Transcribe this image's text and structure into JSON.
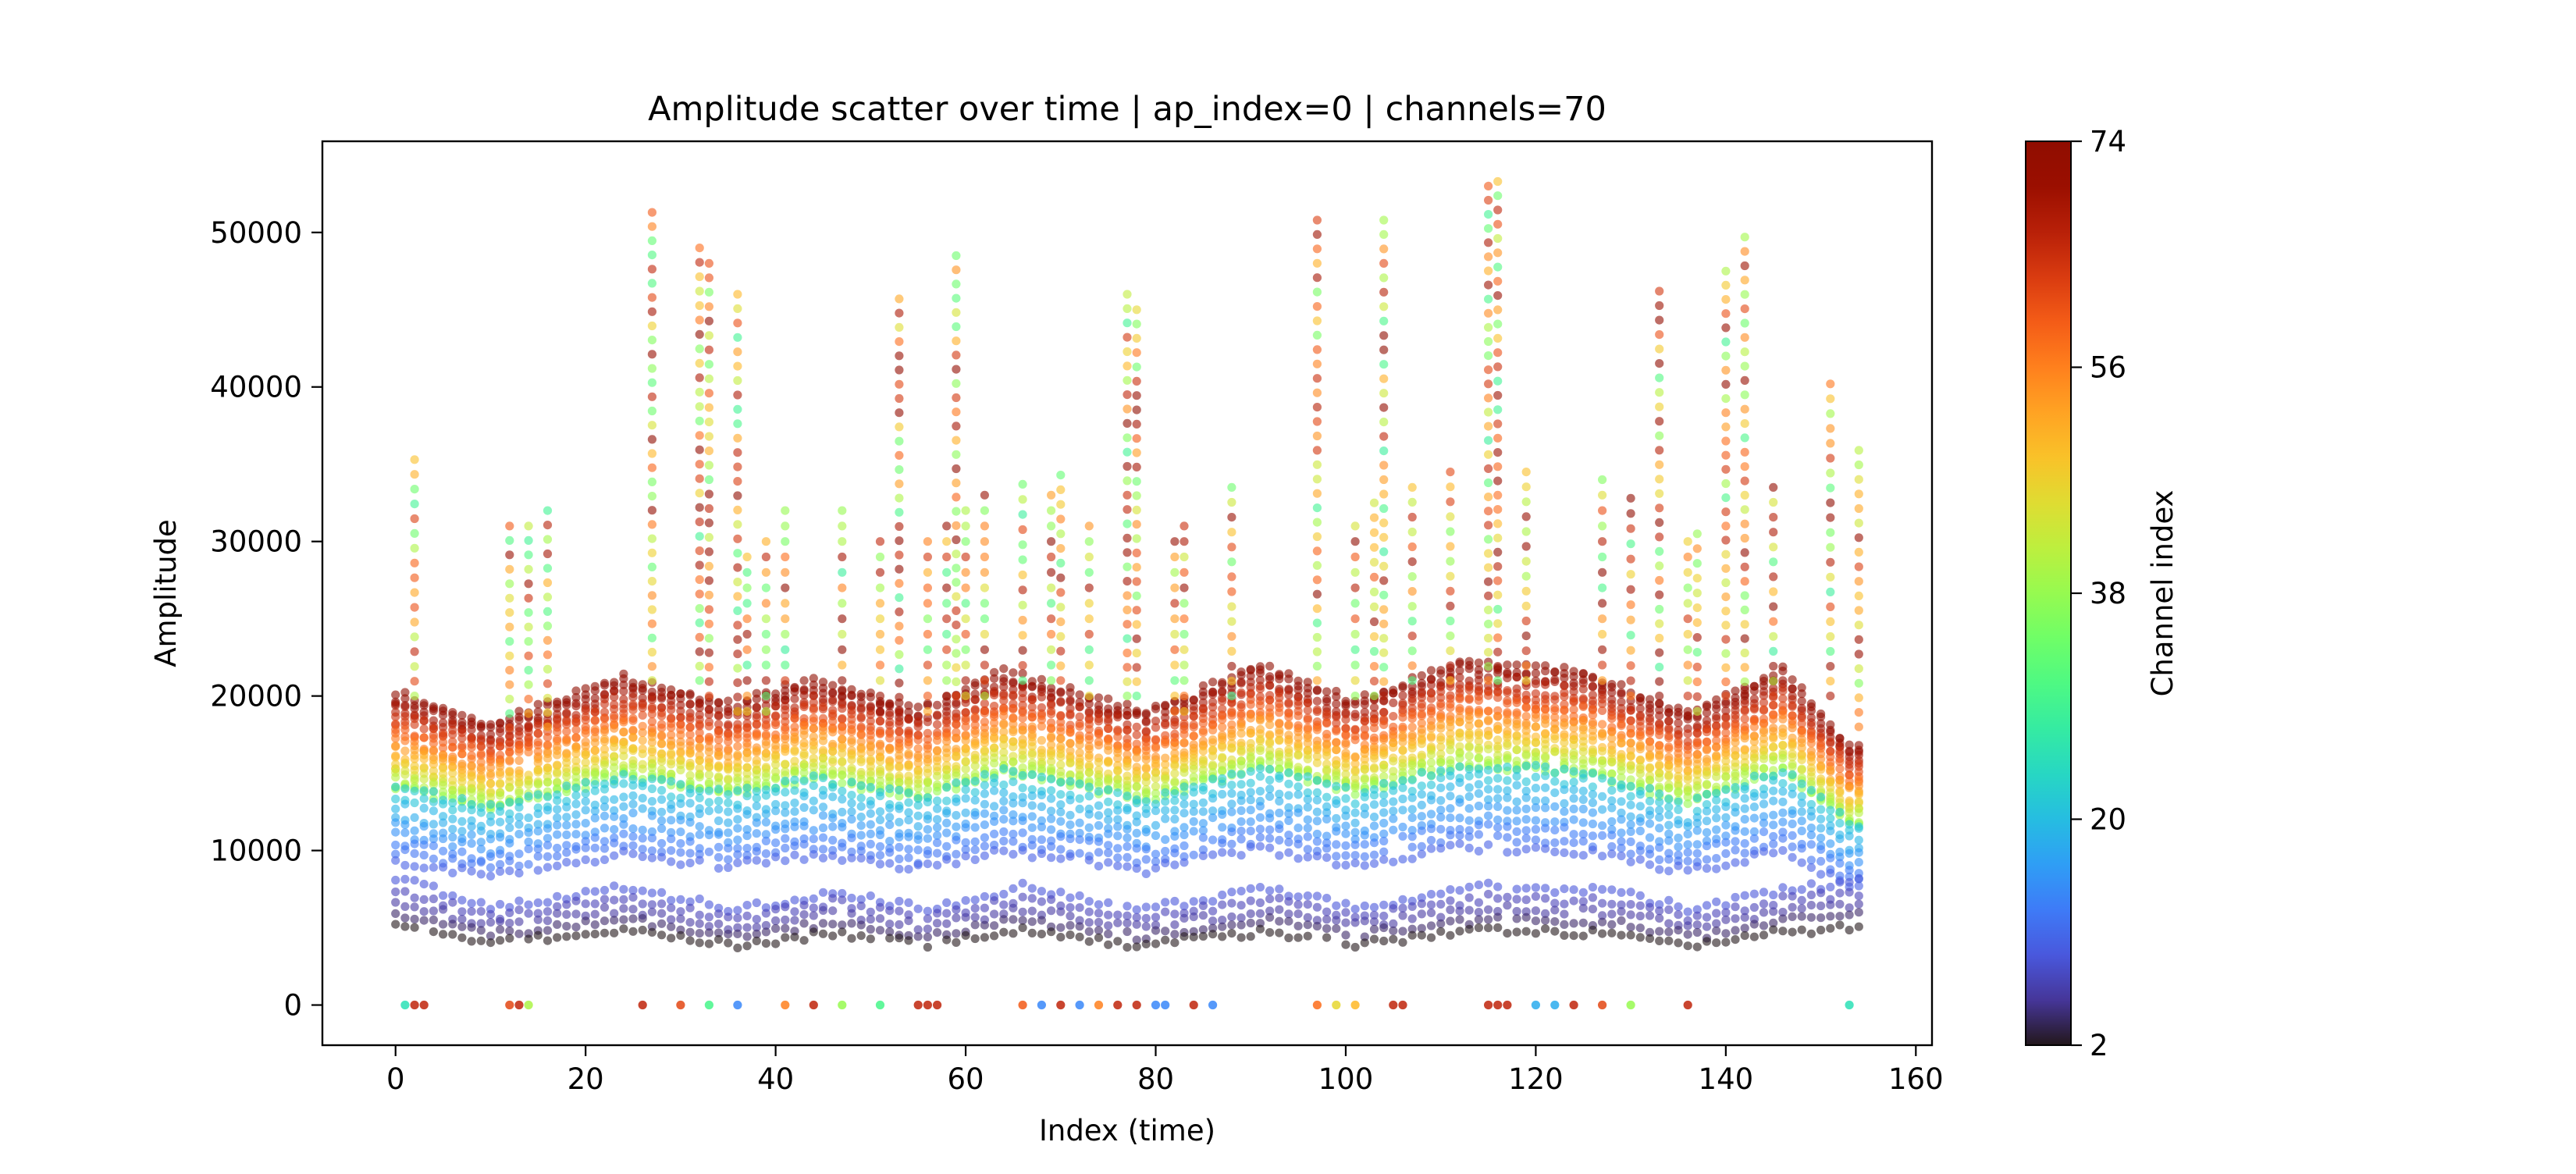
{
  "chart_data": {
    "type": "scatter",
    "title": "Amplitude scatter over time | ap_index=0 | channels=70",
    "xlabel": "Index (time)",
    "ylabel": "Amplitude",
    "xlim": [
      -7.7,
      161.7
    ],
    "ylim": [
      -2600,
      55900
    ],
    "xticks": [
      0,
      20,
      40,
      60,
      80,
      100,
      120,
      140,
      160
    ],
    "yticks": [
      0,
      10000,
      20000,
      30000,
      40000,
      50000
    ],
    "grid": false,
    "colormap": "turbo",
    "colorbar": {
      "label": "Channel index",
      "min": 2,
      "max": 74,
      "ticks": [
        2,
        20,
        38,
        56,
        74
      ]
    },
    "x_count": 155,
    "channel_count": 70,
    "zero_points": [
      {
        "x": 1,
        "channel": 25
      },
      {
        "x": 2,
        "channel": 66
      },
      {
        "x": 3,
        "channel": 66
      },
      {
        "x": 12,
        "channel": 62
      },
      {
        "x": 13,
        "channel": 66
      },
      {
        "x": 14,
        "channel": 40
      },
      {
        "x": 26,
        "channel": 66
      },
      {
        "x": 30,
        "channel": 62
      },
      {
        "x": 33,
        "channel": 30
      },
      {
        "x": 36,
        "channel": 14
      },
      {
        "x": 41,
        "channel": 56
      },
      {
        "x": 44,
        "channel": 66
      },
      {
        "x": 47,
        "channel": 38
      },
      {
        "x": 51,
        "channel": 30
      },
      {
        "x": 55,
        "channel": 66
      },
      {
        "x": 56,
        "channel": 66
      },
      {
        "x": 57,
        "channel": 66
      },
      {
        "x": 66,
        "channel": 60
      },
      {
        "x": 68,
        "channel": 14
      },
      {
        "x": 70,
        "channel": 66
      },
      {
        "x": 72,
        "channel": 14
      },
      {
        "x": 74,
        "channel": 56
      },
      {
        "x": 76,
        "channel": 66
      },
      {
        "x": 78,
        "channel": 66
      },
      {
        "x": 80,
        "channel": 14
      },
      {
        "x": 81,
        "channel": 14
      },
      {
        "x": 84,
        "channel": 66
      },
      {
        "x": 86,
        "channel": 14
      },
      {
        "x": 97,
        "channel": 58
      },
      {
        "x": 99,
        "channel": 46
      },
      {
        "x": 101,
        "channel": 50
      },
      {
        "x": 105,
        "channel": 66
      },
      {
        "x": 106,
        "channel": 66
      },
      {
        "x": 115,
        "channel": 66
      },
      {
        "x": 116,
        "channel": 66
      },
      {
        "x": 117,
        "channel": 66
      },
      {
        "x": 120,
        "channel": 18
      },
      {
        "x": 122,
        "channel": 18
      },
      {
        "x": 124,
        "channel": 66
      },
      {
        "x": 127,
        "channel": 62
      },
      {
        "x": 130,
        "channel": 38
      },
      {
        "x": 136,
        "channel": 66
      },
      {
        "x": 153,
        "channel": 25
      }
    ],
    "spikes": [
      {
        "x": 2,
        "max": 35300,
        "min": 20000
      },
      {
        "x": 12,
        "max": 31000,
        "min": 17000
      },
      {
        "x": 14,
        "max": 31000,
        "min": 17000
      },
      {
        "x": 16,
        "max": 32000,
        "min": 18000
      },
      {
        "x": 27,
        "max": 51300,
        "min": 21000
      },
      {
        "x": 32,
        "max": 49000,
        "min": 21000
      },
      {
        "x": 33,
        "max": 48000,
        "min": 20000
      },
      {
        "x": 36,
        "max": 46000,
        "min": 19000
      },
      {
        "x": 37,
        "max": 29000,
        "min": 19000
      },
      {
        "x": 39,
        "max": 30000,
        "min": 19000
      },
      {
        "x": 41,
        "max": 32000,
        "min": 20000
      },
      {
        "x": 47,
        "max": 32000,
        "min": 20000
      },
      {
        "x": 51,
        "max": 30000,
        "min": 19000
      },
      {
        "x": 53,
        "max": 45700,
        "min": 19000
      },
      {
        "x": 56,
        "max": 30000,
        "min": 19000
      },
      {
        "x": 58,
        "max": 31000,
        "min": 20000
      },
      {
        "x": 59,
        "max": 48500,
        "min": 20000
      },
      {
        "x": 60,
        "max": 32000,
        "min": 20000
      },
      {
        "x": 62,
        "max": 33000,
        "min": 20000
      },
      {
        "x": 66,
        "max": 33700,
        "min": 21000
      },
      {
        "x": 69,
        "max": 33000,
        "min": 21000
      },
      {
        "x": 70,
        "max": 34300,
        "min": 21000
      },
      {
        "x": 73,
        "max": 31000,
        "min": 20000
      },
      {
        "x": 77,
        "max": 46000,
        "min": 20000
      },
      {
        "x": 78,
        "max": 45000,
        "min": 20000
      },
      {
        "x": 82,
        "max": 30000,
        "min": 19000
      },
      {
        "x": 83,
        "max": 31000,
        "min": 19000
      },
      {
        "x": 88,
        "max": 33500,
        "min": 20000
      },
      {
        "x": 97,
        "max": 50800,
        "min": 21000
      },
      {
        "x": 101,
        "max": 31000,
        "min": 20000
      },
      {
        "x": 103,
        "max": 32500,
        "min": 20000
      },
      {
        "x": 104,
        "max": 50800,
        "min": 20000
      },
      {
        "x": 107,
        "max": 33500,
        "min": 21000
      },
      {
        "x": 111,
        "max": 34500,
        "min": 21000
      },
      {
        "x": 115,
        "max": 53000,
        "min": 21000
      },
      {
        "x": 116,
        "max": 53300,
        "min": 21000
      },
      {
        "x": 119,
        "max": 34500,
        "min": 21000
      },
      {
        "x": 127,
        "max": 34000,
        "min": 21000
      },
      {
        "x": 130,
        "max": 32800,
        "min": 20000
      },
      {
        "x": 133,
        "max": 46200,
        "min": 20000
      },
      {
        "x": 136,
        "max": 30000,
        "min": 19000
      },
      {
        "x": 137,
        "max": 30500,
        "min": 19000
      },
      {
        "x": 140,
        "max": 47500,
        "min": 20000
      },
      {
        "x": 142,
        "max": 49700,
        "min": 20000
      },
      {
        "x": 145,
        "max": 33500,
        "min": 20000
      },
      {
        "x": 151,
        "max": 40200,
        "min": 20000
      },
      {
        "x": 154,
        "max": 35900,
        "min": 18000
      }
    ],
    "band_peaks": [
      {
        "x": 1,
        "v": 20000
      },
      {
        "x": 10,
        "v": 18200
      },
      {
        "x": 24,
        "v": 21200
      },
      {
        "x": 35,
        "v": 19500
      },
      {
        "x": 44,
        "v": 21000
      },
      {
        "x": 55,
        "v": 19200
      },
      {
        "x": 64,
        "v": 21600
      },
      {
        "x": 79,
        "v": 19000
      },
      {
        "x": 91,
        "v": 22000
      },
      {
        "x": 101,
        "v": 19600
      },
      {
        "x": 112,
        "v": 22200
      },
      {
        "x": 125,
        "v": 21600
      },
      {
        "x": 136,
        "v": 18800
      },
      {
        "x": 146,
        "v": 21700
      },
      {
        "x": 153,
        "v": 16800
      }
    ],
    "lowest_band": [
      {
        "x": 0,
        "v": 5500
      },
      {
        "x": 10,
        "v": 4200
      },
      {
        "x": 24,
        "v": 5100
      },
      {
        "x": 36,
        "v": 4100
      },
      {
        "x": 46,
        "v": 4900
      },
      {
        "x": 56,
        "v": 4100
      },
      {
        "x": 66,
        "v": 5100
      },
      {
        "x": 78,
        "v": 4100
      },
      {
        "x": 92,
        "v": 5000
      },
      {
        "x": 101,
        "v": 4200
      },
      {
        "x": 115,
        "v": 5100
      },
      {
        "x": 128,
        "v": 4900
      },
      {
        "x": 137,
        "v": 4100
      },
      {
        "x": 146,
        "v": 5000
      },
      {
        "x": 154,
        "v": 5300
      }
    ],
    "point_alpha": 0.6
  }
}
